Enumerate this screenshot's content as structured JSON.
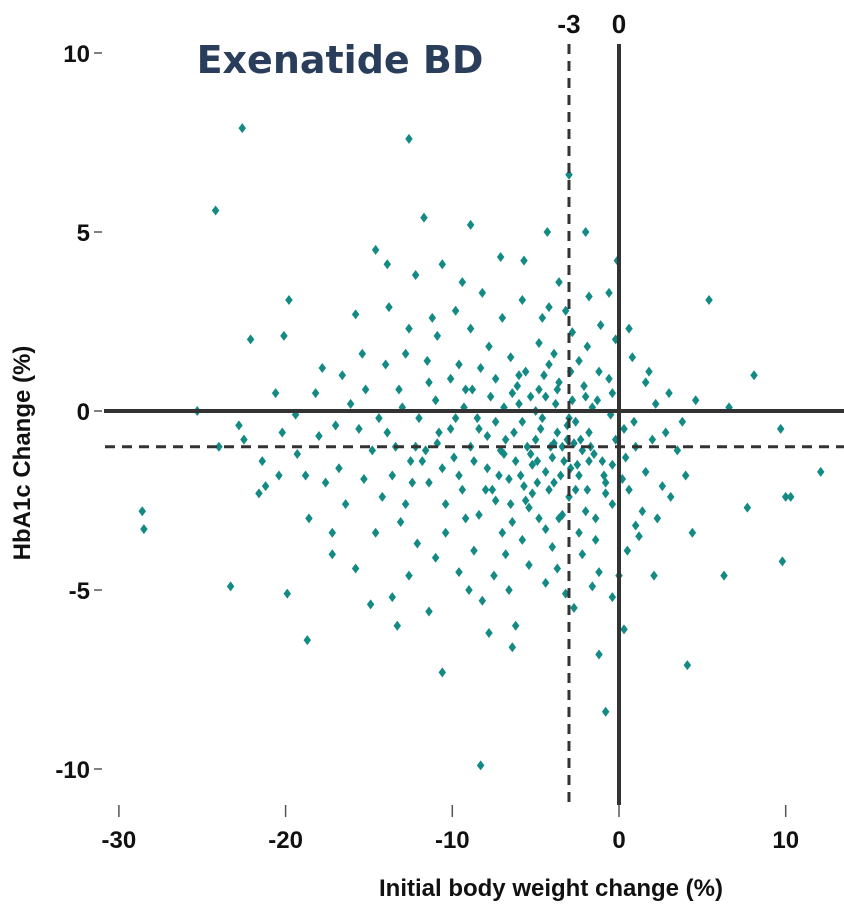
{
  "chart_data": {
    "type": "scatter",
    "title": "Exenatide BD",
    "xlabel": "Initial body weight change (%)",
    "ylabel": "HbA1c Change (%)",
    "xlim": [
      -31,
      13.5
    ],
    "ylim": [
      -11.5,
      10.5
    ],
    "x_ticks": [
      -30,
      -20,
      -10,
      0,
      10
    ],
    "x_tick_labels": [
      "-30",
      "-20",
      "-10",
      "0",
      "10"
    ],
    "y_ticks": [
      10,
      5,
      0,
      -5,
      -10
    ],
    "y_tick_labels": [
      "10",
      "5",
      "0",
      "-5",
      "-10"
    ],
    "reference_lines": [
      {
        "orientation": "vertical",
        "value": -3,
        "style": "dashed",
        "label": "-3"
      },
      {
        "orientation": "vertical",
        "value": 0,
        "style": "solid",
        "label": "0"
      },
      {
        "orientation": "horizontal",
        "value": 0,
        "style": "solid",
        "label": ""
      },
      {
        "orientation": "horizontal",
        "value": -1,
        "style": "dashed",
        "label": ""
      }
    ],
    "grid": false,
    "legend": "none",
    "marker": "diamond",
    "colors": {
      "points": "#138a84",
      "title": "#2a3e5c",
      "lines": "#333333"
    },
    "series": [
      {
        "points": [
          [
            -22.6,
            7.9
          ],
          [
            -12.6,
            7.6
          ],
          [
            -24.2,
            5.6
          ],
          [
            -11.7,
            5.4
          ],
          [
            -8.9,
            5.2
          ],
          [
            -3.0,
            6.6
          ],
          [
            -0.1,
            4.2
          ],
          [
            5.4,
            3.1
          ],
          [
            -19.8,
            3.1
          ],
          [
            -22.1,
            2.0
          ],
          [
            -20.1,
            2.1
          ],
          [
            -23.3,
            -4.9
          ],
          [
            -28.6,
            -2.8
          ],
          [
            -28.5,
            -3.3
          ],
          [
            -19.9,
            -5.1
          ],
          [
            -18.7,
            -6.4
          ],
          [
            -10.6,
            -7.3
          ],
          [
            -8.3,
            -9.9
          ],
          [
            -0.8,
            -8.4
          ],
          [
            -1.2,
            -6.8
          ],
          [
            4.1,
            -7.1
          ],
          [
            0.3,
            -6.1
          ],
          [
            6.3,
            -4.6
          ],
          [
            7.7,
            -2.7
          ],
          [
            9.8,
            -4.2
          ],
          [
            10.0,
            -2.4
          ],
          [
            10.3,
            -2.4
          ],
          [
            12.1,
            -1.7
          ],
          [
            9.7,
            -0.5
          ],
          [
            8.1,
            1.0
          ],
          [
            6.6,
            0.1
          ],
          [
            -2.0,
            5.0
          ],
          [
            -4.3,
            5.0
          ],
          [
            -3.6,
            3.6
          ],
          [
            -15.8,
            2.7
          ],
          [
            -17.8,
            1.2
          ],
          [
            -25.3,
            0.0
          ],
          [
            -22.5,
            -0.8
          ],
          [
            -21.2,
            -2.1
          ],
          [
            -17.2,
            -4.0
          ],
          [
            -14.9,
            -5.4
          ],
          [
            -13.3,
            -6.0
          ],
          [
            -6.4,
            -6.6
          ],
          [
            -6.2,
            -6.0
          ],
          [
            -7.8,
            -6.2
          ],
          [
            -2.7,
            -5.5
          ],
          [
            -0.4,
            -5.2
          ],
          [
            2.1,
            -4.6
          ],
          [
            4.4,
            -3.4
          ],
          [
            -9.4,
            3.6
          ],
          [
            -10.6,
            4.1
          ],
          [
            -13.9,
            4.1
          ],
          [
            -14.6,
            4.5
          ],
          [
            -12.2,
            3.8
          ],
          [
            -7.1,
            4.3
          ],
          [
            -5.7,
            4.2
          ],
          [
            -4.2,
            2.9
          ],
          [
            -8.9,
            2.3
          ],
          [
            -10.9,
            2.1
          ],
          [
            -11.5,
            1.4
          ],
          [
            -12.8,
            1.6
          ],
          [
            -14.0,
            1.3
          ],
          [
            -15.2,
            0.6
          ],
          [
            -16.1,
            0.2
          ],
          [
            -17.0,
            -0.4
          ],
          [
            -18.0,
            -0.7
          ],
          [
            -19.3,
            -1.2
          ],
          [
            -20.4,
            -1.8
          ],
          [
            -21.6,
            -2.3
          ],
          [
            -18.6,
            -3.0
          ],
          [
            -16.4,
            -2.6
          ],
          [
            -15.3,
            -1.9
          ],
          [
            -14.2,
            -2.4
          ],
          [
            -13.1,
            -3.1
          ],
          [
            -12.1,
            -3.7
          ],
          [
            -11.0,
            -4.1
          ],
          [
            -9.6,
            -4.5
          ],
          [
            -8.7,
            -3.9
          ],
          [
            -7.5,
            -4.6
          ],
          [
            -6.6,
            -5.0
          ],
          [
            -5.4,
            -4.3
          ],
          [
            -4.4,
            -4.8
          ],
          [
            -3.7,
            -4.4
          ],
          [
            -2.2,
            -4.0
          ],
          [
            -1.2,
            -4.5
          ],
          [
            0.5,
            -3.9
          ],
          [
            1.2,
            -3.5
          ],
          [
            2.3,
            -3.0
          ],
          [
            3.1,
            -2.4
          ],
          [
            4.0,
            -1.8
          ],
          [
            3.5,
            -1.1
          ],
          [
            2.8,
            -0.6
          ],
          [
            2.2,
            0.2
          ],
          [
            1.6,
            0.8
          ],
          [
            0.8,
            1.5
          ],
          [
            -0.2,
            2.0
          ],
          [
            -1.1,
            2.4
          ],
          [
            -1.9,
            1.8
          ],
          [
            -2.8,
            2.2
          ],
          [
            -3.9,
            1.6
          ],
          [
            -4.8,
            1.9
          ],
          [
            -5.6,
            1.1
          ],
          [
            -6.5,
            1.5
          ],
          [
            -7.4,
            0.9
          ],
          [
            -8.3,
            1.2
          ],
          [
            -9.2,
            0.6
          ],
          [
            -10.1,
            0.9
          ],
          [
            -11.0,
            0.3
          ],
          [
            -12.0,
            -0.2
          ],
          [
            -13.0,
            0.1
          ],
          [
            -13.9,
            -0.6
          ],
          [
            -14.8,
            -1.1
          ],
          [
            -13.6,
            -1.8
          ],
          [
            -12.5,
            -1.4
          ],
          [
            -11.4,
            -2.0
          ],
          [
            -10.4,
            -2.6
          ],
          [
            -9.4,
            -2.2
          ],
          [
            -8.4,
            -2.9
          ],
          [
            -7.4,
            -2.5
          ],
          [
            -6.4,
            -3.1
          ],
          [
            -5.4,
            -2.7
          ],
          [
            -4.4,
            -3.3
          ],
          [
            -3.4,
            -2.9
          ],
          [
            -2.4,
            -3.4
          ],
          [
            -1.4,
            -3.0
          ],
          [
            -0.4,
            -2.6
          ],
          [
            0.6,
            -2.2
          ],
          [
            1.6,
            -1.7
          ],
          [
            1.0,
            -1.0
          ],
          [
            0.3,
            -0.5
          ],
          [
            -0.5,
            -0.1
          ],
          [
            -1.3,
            0.3
          ],
          [
            -2.1,
            0.7
          ],
          [
            -2.9,
            1.1
          ],
          [
            -3.7,
            0.6
          ],
          [
            -4.5,
            1.0
          ],
          [
            -5.3,
            0.4
          ],
          [
            -6.1,
            0.7
          ],
          [
            -6.9,
            0.1
          ],
          [
            -7.7,
            0.4
          ],
          [
            -8.5,
            -0.2
          ],
          [
            -9.3,
            0.1
          ],
          [
            -10.1,
            -0.5
          ],
          [
            -10.9,
            -0.9
          ],
          [
            -9.9,
            -1.3
          ],
          [
            -8.9,
            -1.0
          ],
          [
            -7.9,
            -1.6
          ],
          [
            -6.9,
            -1.2
          ],
          [
            -5.9,
            -1.8
          ],
          [
            -4.9,
            -1.4
          ],
          [
            -3.9,
            -2.0
          ],
          [
            -2.9,
            -1.6
          ],
          [
            -1.9,
            -2.2
          ],
          [
            -0.9,
            -1.8
          ],
          [
            -1.5,
            -1.2
          ],
          [
            -2.3,
            -0.8
          ],
          [
            -3.1,
            -0.4
          ],
          [
            -3.9,
            -0.9
          ],
          [
            -4.7,
            -0.5
          ],
          [
            -5.5,
            -1.0
          ],
          [
            -6.3,
            -0.6
          ],
          [
            -7.1,
            -1.1
          ],
          [
            -7.9,
            -0.7
          ],
          [
            -8.7,
            -1.4
          ],
          [
            -4.0,
            -1.3
          ],
          [
            -4.6,
            -0.2
          ],
          [
            -3.3,
            -1.4
          ],
          [
            -2.6,
            -0.3
          ],
          [
            -5.0,
            -0.8
          ],
          [
            -3.8,
            0.2
          ],
          [
            -2.2,
            -1.1
          ],
          [
            -1.8,
            -0.6
          ],
          [
            -4.4,
            -1.7
          ],
          [
            -5.8,
            -0.3
          ],
          [
            -6.6,
            -1.9
          ],
          [
            -1.0,
            -1.4
          ],
          [
            -0.2,
            -0.8
          ],
          [
            -7.6,
            -2.2
          ],
          [
            -3.0,
            -2.4
          ],
          [
            -2.4,
            -1.8
          ],
          [
            -5.2,
            -2.3
          ],
          [
            -6.0,
            0.2
          ],
          [
            -4.8,
            0.6
          ],
          [
            -3.6,
            0.8
          ],
          [
            -1.6,
            0.1
          ],
          [
            0.4,
            -1.3
          ],
          [
            -0.8,
            -2.3
          ],
          [
            -9.6,
            -1.8
          ],
          [
            -11.6,
            -1.1
          ],
          [
            -12.8,
            -2.6
          ],
          [
            -15.6,
            -0.5
          ],
          [
            -16.8,
            -1.6
          ],
          [
            -19.4,
            -0.1
          ],
          [
            -20.6,
            0.5
          ],
          [
            -17.6,
            -2.0
          ],
          [
            -14.6,
            -3.4
          ],
          [
            -12.6,
            -4.6
          ],
          [
            -10.4,
            -3.4
          ],
          [
            -8.2,
            -5.3
          ],
          [
            -5.8,
            -3.6
          ],
          [
            -3.2,
            -5.1
          ],
          [
            -1.6,
            -4.9
          ],
          [
            0.0,
            -4.6
          ],
          [
            1.4,
            -2.8
          ],
          [
            2.6,
            -2.1
          ],
          [
            3.8,
            -0.3
          ],
          [
            4.6,
            0.3
          ],
          [
            3.0,
            0.5
          ],
          [
            1.8,
            1.1
          ],
          [
            0.6,
            2.3
          ],
          [
            -0.6,
            3.3
          ],
          [
            -1.8,
            3.2
          ],
          [
            -3.2,
            2.8
          ],
          [
            -4.6,
            2.6
          ],
          [
            -5.8,
            3.1
          ],
          [
            -7.0,
            2.6
          ],
          [
            -8.2,
            3.3
          ],
          [
            -9.8,
            2.8
          ],
          [
            -11.2,
            2.6
          ],
          [
            -12.6,
            2.3
          ],
          [
            -13.8,
            2.9
          ],
          [
            -15.4,
            1.6
          ],
          [
            -16.6,
            1.0
          ],
          [
            -18.2,
            0.5
          ],
          [
            -20.2,
            -0.6
          ],
          [
            -21.4,
            -1.4
          ],
          [
            -22.8,
            -0.4
          ],
          [
            -24.0,
            -1.0
          ],
          [
            -18.8,
            -1.8
          ],
          [
            -17.2,
            -3.4
          ],
          [
            -15.8,
            -4.4
          ],
          [
            -13.6,
            -5.2
          ],
          [
            -11.4,
            -5.6
          ],
          [
            -9.0,
            -5.0
          ],
          [
            -6.8,
            -4.0
          ],
          [
            -4.0,
            -3.8
          ],
          [
            -1.4,
            -3.6
          ],
          [
            1.0,
            -3.2
          ],
          [
            2.0,
            -0.8
          ],
          [
            -0.6,
            0.9
          ],
          [
            -2.4,
            1.4
          ],
          [
            -4.2,
            1.3
          ],
          [
            -6.0,
            1.0
          ],
          [
            -7.8,
            1.8
          ],
          [
            -9.6,
            1.3
          ],
          [
            -11.4,
            0.8
          ],
          [
            -13.2,
            0.6
          ],
          [
            -14.4,
            -0.2
          ],
          [
            -12.2,
            -1.0
          ],
          [
            -10.6,
            -1.6
          ],
          [
            -8.0,
            -2.2
          ],
          [
            -5.6,
            -2.5
          ],
          [
            -3.6,
            -3.0
          ],
          [
            -2.0,
            -2.8
          ],
          [
            -0.8,
            -2.0
          ],
          [
            0.2,
            -1.9
          ],
          [
            0.9,
            -0.3
          ],
          [
            -0.4,
            0.5
          ],
          [
            -1.2,
            1.1
          ],
          [
            -2.8,
            0.3
          ],
          [
            -4.4,
            0.4
          ],
          [
            -5.2,
            -1.5
          ],
          [
            -6.8,
            -0.8
          ],
          [
            -7.4,
            -0.3
          ],
          [
            -8.8,
            0.6
          ],
          [
            -9.8,
            -0.2
          ],
          [
            -10.8,
            -0.6
          ],
          [
            -11.8,
            -1.4
          ],
          [
            -12.4,
            -2.0
          ],
          [
            -13.4,
            -1.0
          ],
          [
            -9.2,
            -3.0
          ],
          [
            -7.0,
            -3.4
          ],
          [
            -4.8,
            -3.0
          ],
          [
            -2.6,
            -2.2
          ],
          [
            -1.8,
            -1.4
          ],
          [
            -3.4,
            -1.0
          ],
          [
            -4.2,
            -2.2
          ],
          [
            -6.2,
            -1.4
          ],
          [
            -5.0,
            0.0
          ],
          [
            -3.0,
            -0.2
          ],
          [
            -2.0,
            0.4
          ],
          [
            -6.4,
            0.5
          ],
          [
            -8.4,
            -0.5
          ],
          [
            -7.2,
            -1.8
          ],
          [
            -3.7,
            -0.6
          ],
          [
            -4.1,
            -1.0
          ],
          [
            -2.7,
            -0.9
          ],
          [
            -5.3,
            -1.2
          ],
          [
            -3.5,
            -1.8
          ],
          [
            -4.9,
            -2.0
          ],
          [
            -2.5,
            -1.5
          ],
          [
            -3.1,
            -0.8
          ],
          [
            -1.7,
            -1.0
          ],
          [
            -6.5,
            -2.6
          ],
          [
            -5.7,
            -2.1
          ],
          [
            -0.4,
            -1.5
          ]
        ]
      }
    ]
  }
}
